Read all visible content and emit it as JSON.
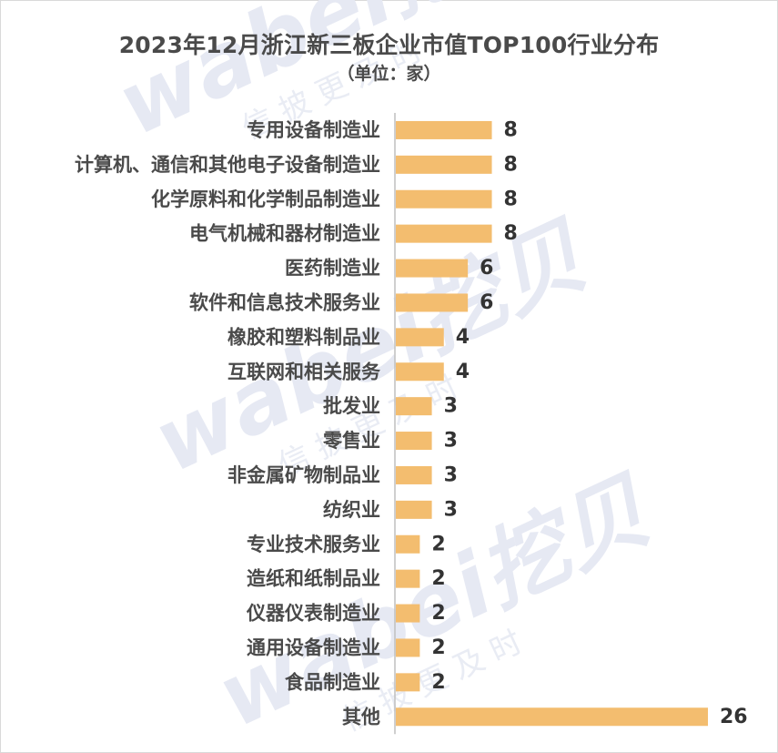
{
  "chart_data": {
    "type": "bar",
    "orientation": "horizontal",
    "title": "2023年12月浙江新三板企业市值TOP100行业分布",
    "subtitle": "（单位：家）",
    "categories": [
      "专用设备制造业",
      "计算机、通信和其他电子设备制造业",
      "化学原料和化学制品制造业",
      "电气机械和器材制造业",
      "医药制造业",
      "软件和信息技术服务业",
      "橡胶和塑料制品业",
      "互联网和相关服务",
      "批发业",
      "零售业",
      "非金属矿物制品业",
      "纺织业",
      "专业技术服务业",
      "造纸和纸制品业",
      "仪器仪表制造业",
      "通用设备制造业",
      "食品制造业",
      "其他"
    ],
    "values": [
      8,
      8,
      8,
      8,
      6,
      6,
      4,
      4,
      3,
      3,
      3,
      3,
      2,
      2,
      2,
      2,
      2,
      26
    ],
    "xlim": [
      0,
      26
    ],
    "grid": false,
    "legend": "none",
    "bar_color": "#f3bd6f",
    "axis_color": "#bfbfbf"
  },
  "watermark": {
    "brand": "wabei挖贝",
    "slogan": "信 披 更 及 时"
  }
}
